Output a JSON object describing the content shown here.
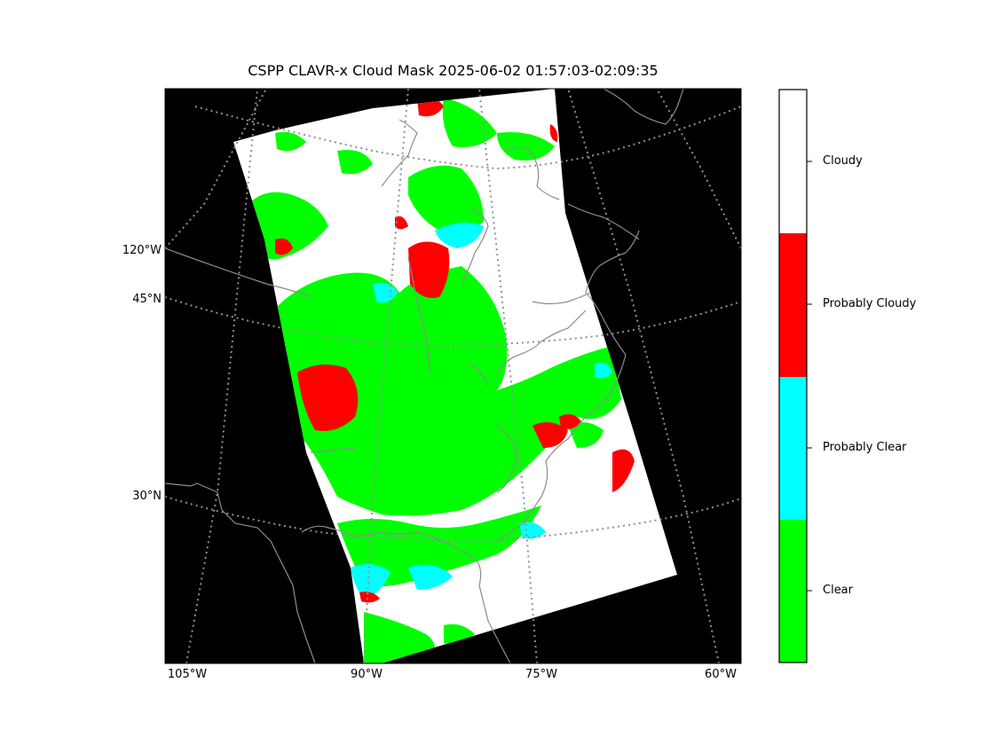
{
  "title": "CSPP CLAVR-x Cloud Mask 2025-06-02 01:57:03-02:09:35",
  "lat_labels": [
    "45°N",
    "30°N"
  ],
  "lon_labels": [
    "105°W",
    "90°W",
    "75°W",
    "60°W"
  ],
  "extra_labels": [
    "120°W"
  ],
  "legend": {
    "classes": [
      {
        "label": "Cloudy",
        "color": "#ffffff"
      },
      {
        "label": "Probably Cloudy",
        "color": "#ff0000"
      },
      {
        "label": "Probably Clear",
        "color": "#00ffff"
      },
      {
        "label": "Clear",
        "color": "#00ff00"
      }
    ]
  },
  "colors": {
    "background": "#000000",
    "grid": "#808080",
    "coast": "#8c8c8c"
  }
}
